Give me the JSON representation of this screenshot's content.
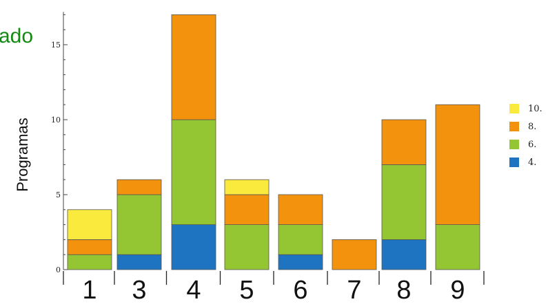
{
  "header_fragment": "",
  "side_fragment": "ado",
  "chart_data": {
    "type": "bar",
    "stacked": true,
    "categories": [
      "1",
      "3",
      "4",
      "5",
      "6",
      "7",
      "8",
      "9"
    ],
    "series": [
      {
        "name": "4.",
        "color": "#1f74c2",
        "values": [
          0,
          1,
          3,
          0,
          1,
          0,
          2,
          0
        ]
      },
      {
        "name": "6.",
        "color": "#94c532",
        "values": [
          1,
          4,
          7,
          3,
          2,
          0,
          5,
          3
        ]
      },
      {
        "name": "8.",
        "color": "#f2920d",
        "values": [
          1,
          1,
          7,
          2,
          2,
          2,
          3,
          8
        ]
      },
      {
        "name": "10.",
        "color": "#fbea3e",
        "values": [
          2,
          0,
          0,
          1,
          0,
          0,
          0,
          0
        ]
      }
    ],
    "ylabel": "Programas",
    "ylim": [
      0,
      17
    ],
    "yticks": [
      "0",
      "5",
      "10",
      "15"
    ],
    "legend_position": "right"
  }
}
